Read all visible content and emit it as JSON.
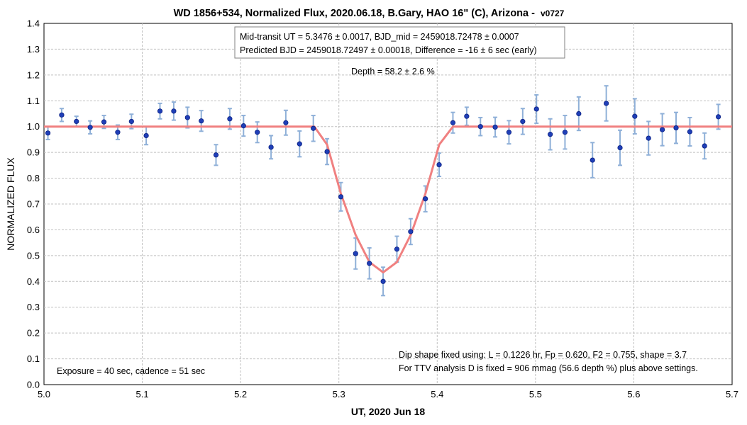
{
  "chart_data": {
    "type": "scatter",
    "title": "WD 1856+534, Normalized Flux, 2020.06.18, B.Gary, HAO 16\" (C), Arizona -",
    "title_suffix": "v0727",
    "xlabel": "UT, 2020 Jun 18",
    "ylabel": "NORMALIZED FLUX",
    "xlim": [
      5.0,
      5.7
    ],
    "ylim": [
      0.0,
      1.4
    ],
    "x_ticks": [
      "5.0",
      "5.1",
      "5.2",
      "5.3",
      "5.4",
      "5.5",
      "5.6",
      "5.7"
    ],
    "y_ticks": [
      "0.0",
      "0.1",
      "0.2",
      "0.3",
      "0.4",
      "0.5",
      "0.6",
      "0.7",
      "0.8",
      "0.9",
      "1.0",
      "1.1",
      "1.2",
      "1.3",
      "1.4"
    ],
    "grid": true,
    "colors": {
      "points": "#1f3fb8",
      "errorbars": "#8fb0d8",
      "model": "#f08080",
      "grid": "#c0c0c0"
    },
    "series": [
      {
        "type": "scatter",
        "x": [
          5.004,
          5.018,
          5.033,
          5.047,
          5.061,
          5.075,
          5.089,
          5.104,
          5.118,
          5.132,
          5.146,
          5.16,
          5.175,
          5.189,
          5.203,
          5.217,
          5.231,
          5.246,
          5.26,
          5.274,
          5.288,
          5.302,
          5.317,
          5.331,
          5.345,
          5.359,
          5.373,
          5.388,
          5.402,
          5.416,
          5.43,
          5.444,
          5.459,
          5.473,
          5.487,
          5.501,
          5.515,
          5.53,
          5.544,
          5.558,
          5.572,
          5.586,
          5.601,
          5.615,
          5.629,
          5.643,
          5.657,
          5.672,
          5.686
        ],
        "y": [
          0.975,
          1.045,
          1.02,
          0.997,
          1.018,
          0.978,
          1.02,
          0.965,
          1.06,
          1.06,
          1.035,
          1.022,
          0.89,
          1.03,
          1.003,
          0.978,
          0.92,
          1.015,
          0.933,
          0.993,
          0.903,
          0.728,
          0.508,
          0.47,
          0.4,
          0.525,
          0.593,
          0.72,
          0.852,
          1.015,
          1.04,
          1.0,
          0.998,
          0.978,
          1.02,
          1.068,
          0.97,
          0.978,
          1.05,
          0.87,
          1.09,
          0.918,
          1.04,
          0.955,
          0.988,
          0.995,
          0.98,
          0.925,
          1.038
        ],
        "err": [
          0.025,
          0.025,
          0.02,
          0.025,
          0.025,
          0.028,
          0.028,
          0.035,
          0.03,
          0.035,
          0.04,
          0.04,
          0.04,
          0.04,
          0.04,
          0.04,
          0.045,
          0.048,
          0.05,
          0.05,
          0.05,
          0.055,
          0.06,
          0.06,
          0.055,
          0.05,
          0.05,
          0.05,
          0.045,
          0.04,
          0.035,
          0.035,
          0.038,
          0.045,
          0.05,
          0.055,
          0.06,
          0.065,
          0.065,
          0.068,
          0.068,
          0.068,
          0.068,
          0.065,
          0.062,
          0.06,
          0.055,
          0.05,
          0.048
        ]
      },
      {
        "type": "line",
        "x": [
          5.0,
          5.275,
          5.288,
          5.302,
          5.317,
          5.331,
          5.345,
          5.359,
          5.373,
          5.388,
          5.402,
          5.416,
          5.7
        ],
        "y": [
          1.0,
          1.0,
          0.93,
          0.74,
          0.58,
          0.475,
          0.435,
          0.475,
          0.58,
          0.74,
          0.93,
          1.0,
          1.0
        ]
      }
    ],
    "annotations": {
      "box_line1": "Mid-transit UT = 5.3476 ± 0.0017, BJD_mid = 2459018.72478 ± 0.0007",
      "box_line2": "Predicted BJD = 2459018.72497 ± 0.00018, Difference = -16 ± 6 sec (early)",
      "depth": "Depth = 58.2 ± 2.6 %",
      "exposure": "Exposure = 40 sec, cadence = 51 sec",
      "dip_line1": "Dip shape fixed using:  L = 0.1226 hr, Fp = 0.620, F2 = 0.755, shape = 3.7",
      "dip_line2": "For TTV analysis D is fixed = 906 mmag (56.6 depth %) plus above settings."
    }
  }
}
